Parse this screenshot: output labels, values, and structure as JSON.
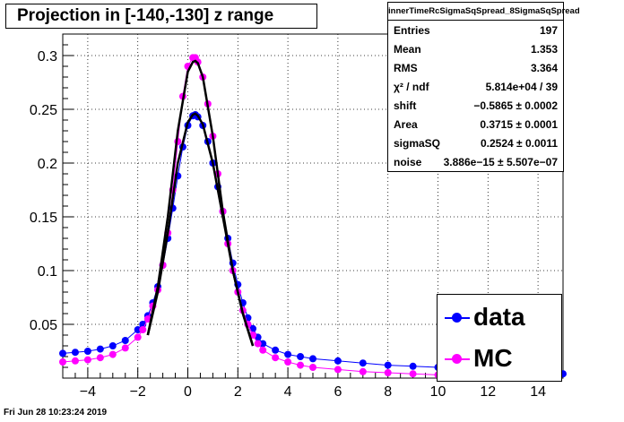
{
  "title": "Projection in [-140,-130] z range",
  "date_stamp": "Fri Jun 28 10:23:24 2019",
  "stats": {
    "name": "innerTimeRcSigmaSqSpread_8SigmaSqSpread",
    "rows": [
      {
        "label": "Entries",
        "value": "197"
      },
      {
        "label": "Mean",
        "value": "1.353"
      },
      {
        "label": "RMS",
        "value": "3.364"
      },
      {
        "label": "χ² / ndf",
        "value": "5.814e+04 / 39"
      },
      {
        "label": "shift",
        "value": "−0.5865 ± 0.0002"
      },
      {
        "label": "Area",
        "value": "0.3715 ± 0.0001"
      },
      {
        "label": "sigmaSQ",
        "value": "0.2524 ± 0.0011"
      },
      {
        "label": "noise",
        "value": "3.886e−15 ± 5.507e−07"
      }
    ]
  },
  "legend": [
    {
      "label": "data",
      "color": "#0000ff"
    },
    {
      "label": "MC",
      "color": "#ff00ff"
    }
  ],
  "colors": {
    "data": "#0000ff",
    "mc": "#ff00ff",
    "fit": "#000000",
    "grid": "#000000"
  },
  "chart_data": {
    "type": "scatter",
    "title": "Projection in [-140,-130] z range",
    "xlabel": "",
    "ylabel": "",
    "xlim": [
      -5,
      15
    ],
    "ylim": [
      0,
      0.32
    ],
    "grid": true,
    "legend_position": "bottom-right",
    "x_ticks": [
      -4,
      -2,
      0,
      2,
      4,
      6,
      8,
      10,
      12,
      14
    ],
    "y_ticks": [
      0.05,
      0.1,
      0.15,
      0.2,
      0.25,
      0.3
    ],
    "x_tick_labels": [
      "−4",
      "−2",
      "0",
      "2",
      "4",
      "6",
      "8",
      "10",
      "12",
      "14"
    ],
    "y_tick_labels": [
      "0.05",
      "0.1",
      "0.15",
      "0.2",
      "0.25",
      "0.3"
    ],
    "series": [
      {
        "name": "data",
        "x": [
          -5,
          -4.5,
          -4,
          -3.5,
          -3,
          -2.5,
          -2,
          -1.8,
          -1.6,
          -1.4,
          -1.2,
          -1,
          -0.8,
          -0.6,
          -0.4,
          -0.2,
          0,
          0.2,
          0.3,
          0.4,
          0.6,
          0.8,
          1,
          1.2,
          1.4,
          1.6,
          1.8,
          2,
          2.2,
          2.4,
          2.6,
          2.8,
          3,
          3.5,
          4,
          4.5,
          5,
          6,
          7,
          8,
          9,
          10,
          11,
          12,
          13,
          14,
          15
        ],
        "y": [
          0.023,
          0.024,
          0.025,
          0.027,
          0.03,
          0.035,
          0.045,
          0.05,
          0.058,
          0.07,
          0.085,
          0.105,
          0.13,
          0.158,
          0.188,
          0.215,
          0.235,
          0.244,
          0.245,
          0.243,
          0.235,
          0.22,
          0.2,
          0.178,
          0.155,
          0.13,
          0.107,
          0.087,
          0.07,
          0.056,
          0.046,
          0.038,
          0.032,
          0.026,
          0.022,
          0.02,
          0.018,
          0.016,
          0.014,
          0.012,
          0.011,
          0.01,
          0.008,
          0.007,
          0.006,
          0.005,
          0.004
        ]
      },
      {
        "name": "MC",
        "x": [
          -5,
          -4.5,
          -4,
          -3.5,
          -3,
          -2.5,
          -2,
          -1.8,
          -1.6,
          -1.4,
          -1.2,
          -1,
          -0.8,
          -0.6,
          -0.4,
          -0.2,
          0,
          0.2,
          0.3,
          0.4,
          0.6,
          0.8,
          1,
          1.2,
          1.4,
          1.6,
          1.8,
          2,
          2.2,
          2.4,
          2.6,
          2.8,
          3,
          3.5,
          4,
          4.5,
          5,
          6,
          7,
          8,
          9,
          10,
          11,
          12,
          13,
          14
        ],
        "y": [
          0.015,
          0.016,
          0.017,
          0.019,
          0.022,
          0.028,
          0.038,
          0.045,
          0.055,
          0.067,
          0.082,
          0.105,
          0.135,
          0.175,
          0.22,
          0.262,
          0.29,
          0.298,
          0.298,
          0.294,
          0.28,
          0.255,
          0.225,
          0.19,
          0.155,
          0.125,
          0.1,
          0.08,
          0.063,
          0.05,
          0.04,
          0.032,
          0.026,
          0.019,
          0.015,
          0.012,
          0.01,
          0.008,
          0.006,
          0.005,
          0.004,
          0.003,
          0.003,
          0.002,
          0.002,
          0.002
        ]
      },
      {
        "name": "",
        "type": "line",
        "x": [
          -1.6,
          -1.2,
          -0.8,
          -0.4,
          0,
          0.2,
          0.3,
          0.4,
          0.6,
          1,
          1.4,
          1.8,
          2.2,
          2.6
        ],
        "y": [
          0.04,
          0.08,
          0.135,
          0.2,
          0.238,
          0.245,
          0.246,
          0.244,
          0.236,
          0.2,
          0.15,
          0.1,
          0.06,
          0.03
        ]
      },
      {
        "name": "",
        "type": "line",
        "x": [
          -1.6,
          -1.2,
          -0.8,
          -0.4,
          0,
          0.2,
          0.3,
          0.4,
          0.6,
          1,
          1.4,
          1.8,
          2.2,
          2.6
        ],
        "y": [
          0.04,
          0.085,
          0.15,
          0.23,
          0.285,
          0.294,
          0.295,
          0.293,
          0.28,
          0.225,
          0.155,
          0.1,
          0.06,
          0.03
        ]
      }
    ]
  }
}
